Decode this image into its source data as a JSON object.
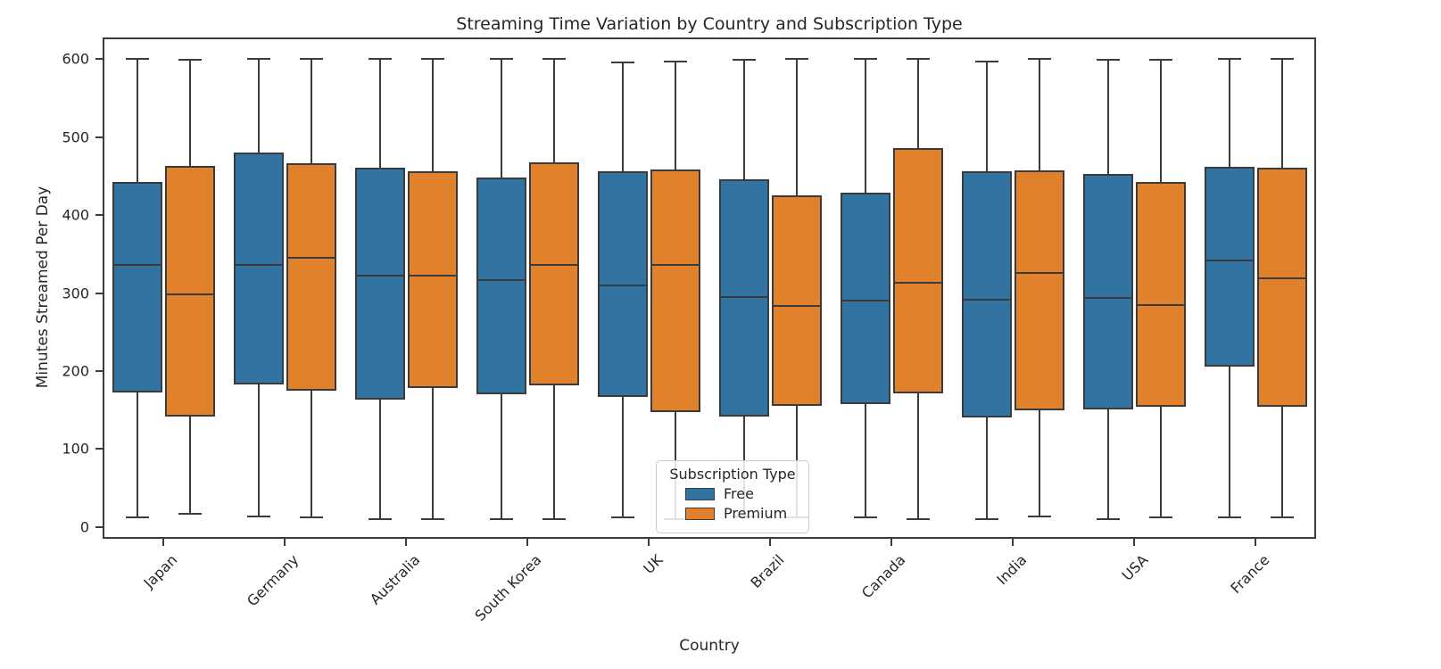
{
  "chart_data": {
    "type": "boxplot",
    "title": "Streaming Time Variation by Country and Subscription Type",
    "xlabel": "Country",
    "ylabel": "Minutes Streamed Per Day",
    "yticks": [
      0,
      100,
      200,
      300,
      400,
      500,
      600
    ],
    "ylim": [
      -15,
      628
    ],
    "grid": false,
    "legend": {
      "title": "Subscription Type",
      "position": "lower center inside plot"
    },
    "categories": [
      "Japan",
      "Germany",
      "Australia",
      "South Korea",
      "UK",
      "Brazil",
      "Canada",
      "India",
      "USA",
      "France"
    ],
    "series": [
      {
        "name": "Free",
        "color": "#3274a1",
        "boxes": [
          {
            "low": 12,
            "q1": 173,
            "median": 336,
            "q3": 443,
            "high": 600
          },
          {
            "low": 14,
            "q1": 183,
            "median": 336,
            "q3": 480,
            "high": 600
          },
          {
            "low": 10,
            "q1": 164,
            "median": 322,
            "q3": 461,
            "high": 600
          },
          {
            "low": 10,
            "q1": 170,
            "median": 317,
            "q3": 448,
            "high": 600
          },
          {
            "low": 13,
            "q1": 167,
            "median": 310,
            "q3": 456,
            "high": 596
          },
          {
            "low": 14,
            "q1": 142,
            "median": 295,
            "q3": 446,
            "high": 599
          },
          {
            "low": 13,
            "q1": 158,
            "median": 290,
            "q3": 429,
            "high": 600
          },
          {
            "low": 10,
            "q1": 141,
            "median": 292,
            "q3": 456,
            "high": 597
          },
          {
            "low": 10,
            "q1": 151,
            "median": 294,
            "q3": 453,
            "high": 599
          },
          {
            "low": 12,
            "q1": 206,
            "median": 342,
            "q3": 462,
            "high": 600
          }
        ]
      },
      {
        "name": "Premium",
        "color": "#e1812c",
        "boxes": [
          {
            "low": 17,
            "q1": 142,
            "median": 298,
            "q3": 463,
            "high": 599
          },
          {
            "low": 12,
            "q1": 175,
            "median": 345,
            "q3": 467,
            "high": 600
          },
          {
            "low": 10,
            "q1": 178,
            "median": 323,
            "q3": 456,
            "high": 600
          },
          {
            "low": 10,
            "q1": 182,
            "median": 336,
            "q3": 468,
            "high": 600
          },
          {
            "low": 10,
            "q1": 148,
            "median": 336,
            "q3": 459,
            "high": 597
          },
          {
            "low": 13,
            "q1": 156,
            "median": 284,
            "q3": 425,
            "high": 600
          },
          {
            "low": 10,
            "q1": 172,
            "median": 313,
            "q3": 486,
            "high": 600
          },
          {
            "low": 14,
            "q1": 150,
            "median": 326,
            "q3": 458,
            "high": 600
          },
          {
            "low": 12,
            "q1": 154,
            "median": 285,
            "q3": 443,
            "high": 599
          },
          {
            "low": 12,
            "q1": 154,
            "median": 319,
            "q3": 461,
            "high": 600
          }
        ]
      }
    ]
  }
}
